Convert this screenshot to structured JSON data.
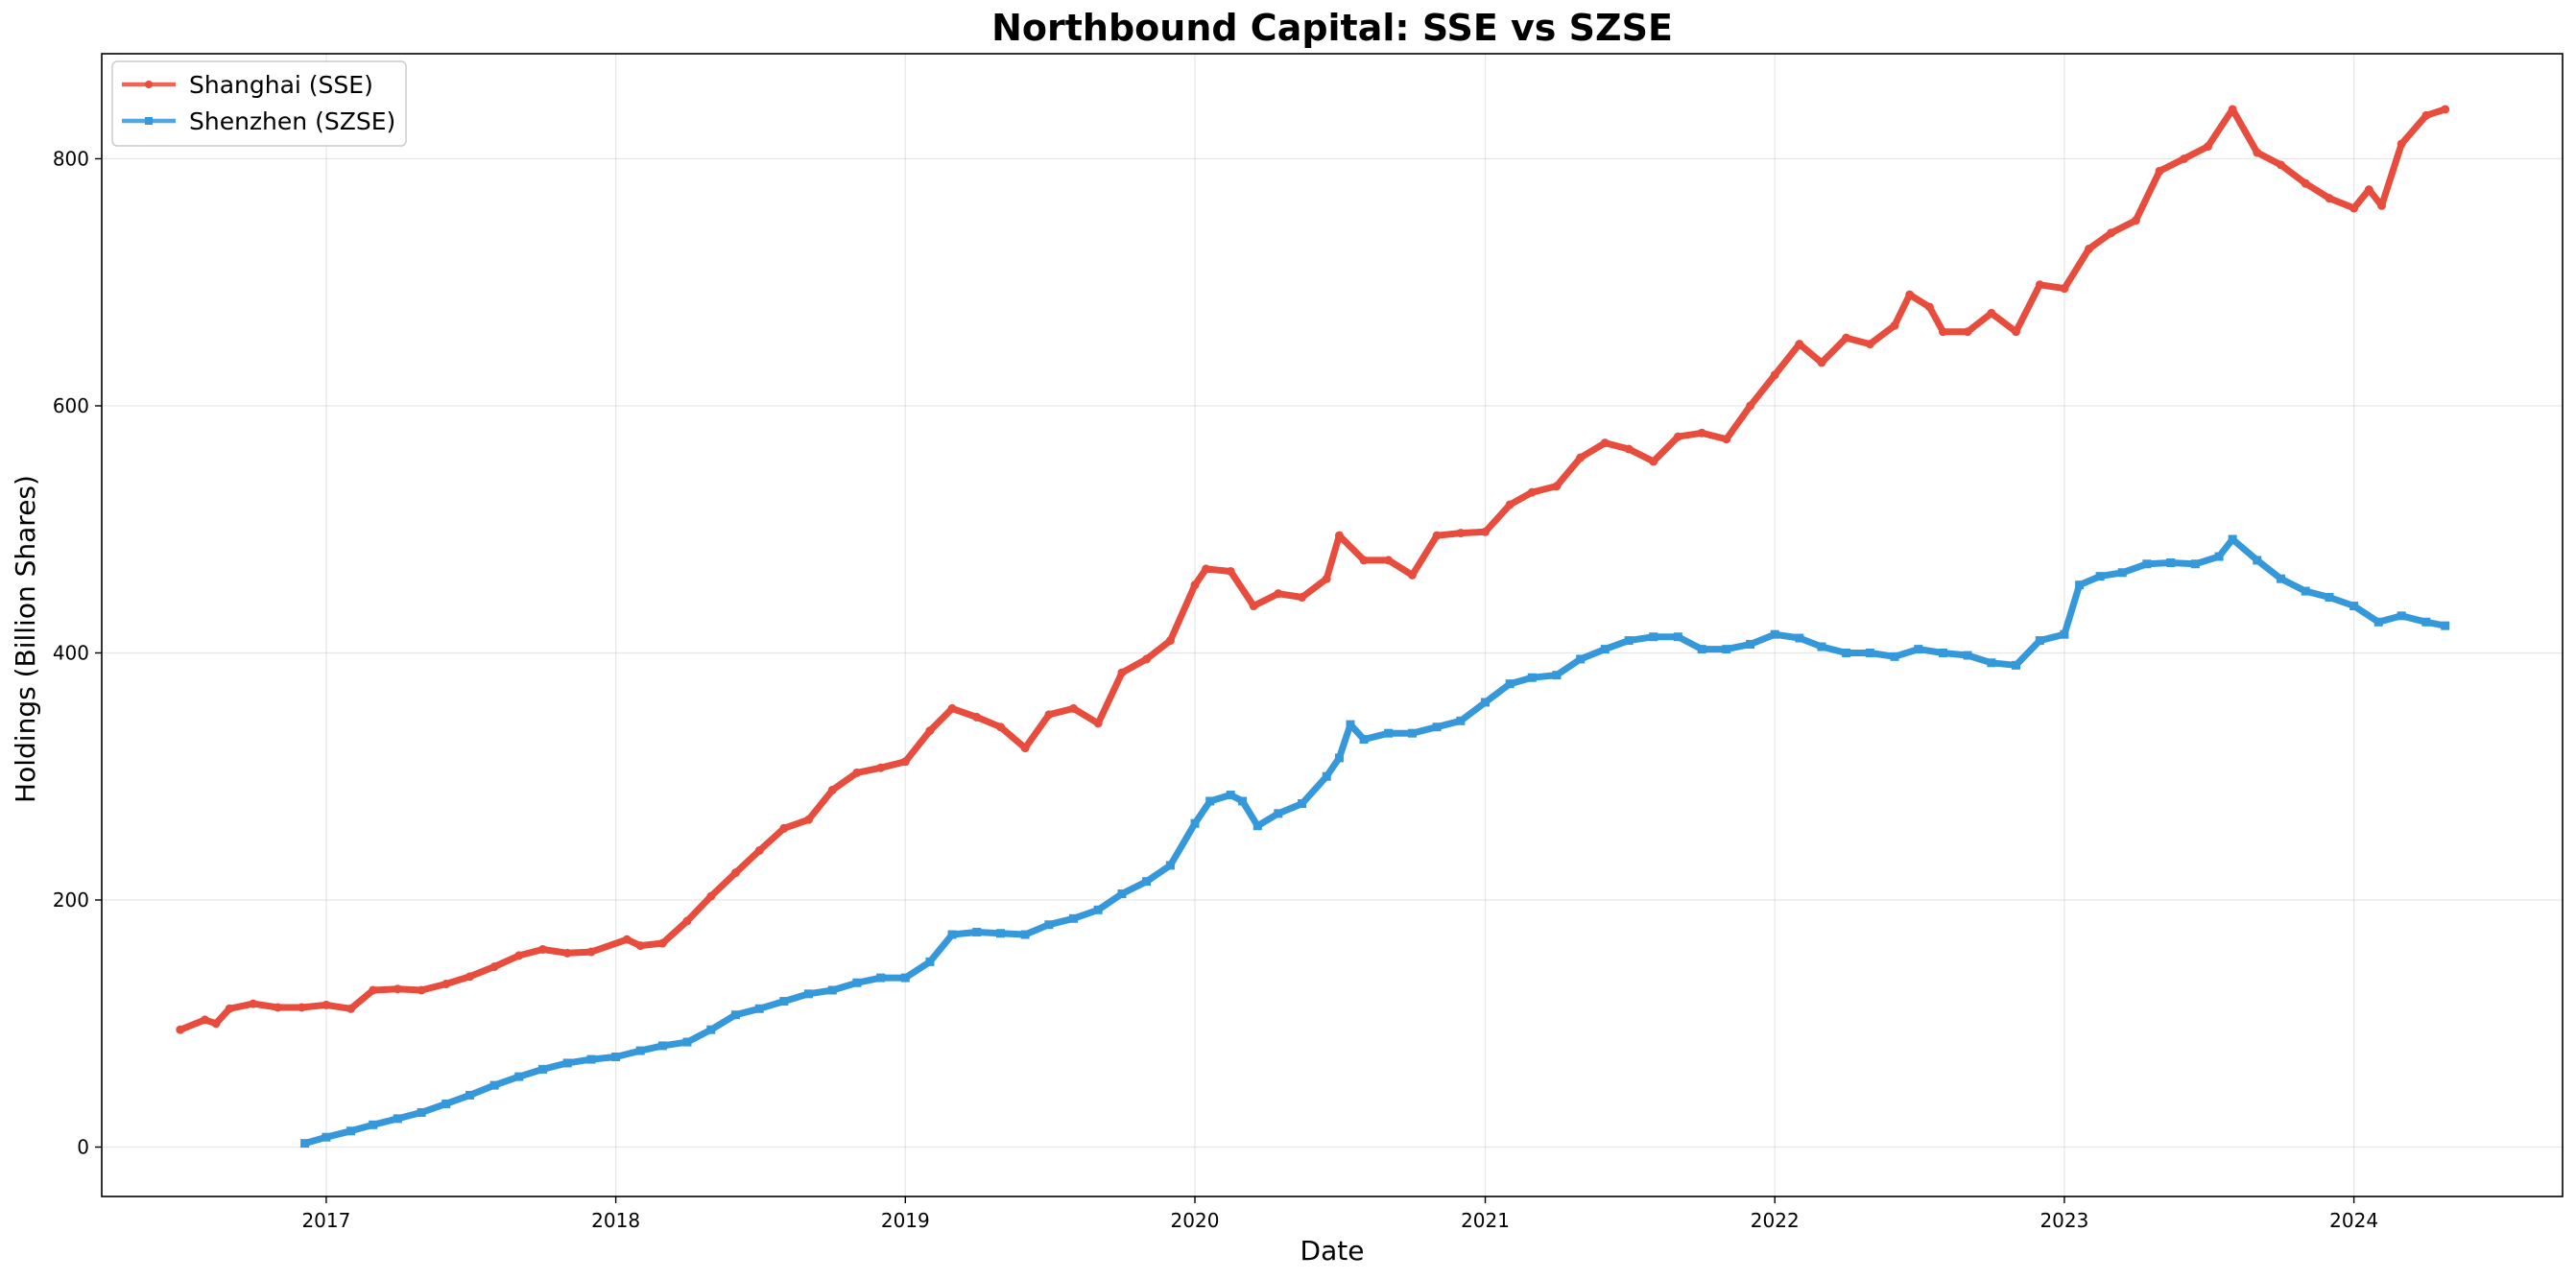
{
  "chart_data": {
    "type": "line",
    "title": "Northbound Capital: SSE vs SZSE",
    "xlabel": "Date",
    "ylabel": "Holdings (Billion Shares)",
    "x_type": "date",
    "xlim": [
      "2016-03-24",
      "2024-09-20"
    ],
    "ylim": [
      -40,
      885
    ],
    "x_ticks": [
      {
        "date": "2017-01-01",
        "label": "2017"
      },
      {
        "date": "2018-01-01",
        "label": "2018"
      },
      {
        "date": "2019-01-01",
        "label": "2019"
      },
      {
        "date": "2020-01-01",
        "label": "2020"
      },
      {
        "date": "2021-01-01",
        "label": "2021"
      },
      {
        "date": "2022-01-01",
        "label": "2022"
      },
      {
        "date": "2023-01-01",
        "label": "2023"
      },
      {
        "date": "2024-01-01",
        "label": "2024"
      }
    ],
    "y_ticks": [
      {
        "value": 0,
        "label": "0"
      },
      {
        "value": 200,
        "label": "200"
      },
      {
        "value": 400,
        "label": "400"
      },
      {
        "value": 600,
        "label": "600"
      },
      {
        "value": 800,
        "label": "800"
      }
    ],
    "grid": true,
    "legend_position": "top-left",
    "series": [
      {
        "name": "Shanghai (SSE)",
        "color": "#e74c3c",
        "marker": "circle",
        "points": [
          [
            "2016-07-01",
            95
          ],
          [
            "2016-08-01",
            103
          ],
          [
            "2016-08-15",
            100
          ],
          [
            "2016-09-01",
            112
          ],
          [
            "2016-10-01",
            116
          ],
          [
            "2016-11-01",
            113
          ],
          [
            "2016-12-01",
            113
          ],
          [
            "2017-01-01",
            115
          ],
          [
            "2017-02-01",
            112
          ],
          [
            "2017-03-01",
            127
          ],
          [
            "2017-04-01",
            128
          ],
          [
            "2017-05-01",
            127
          ],
          [
            "2017-06-01",
            132
          ],
          [
            "2017-07-01",
            138
          ],
          [
            "2017-08-01",
            146
          ],
          [
            "2017-09-01",
            155
          ],
          [
            "2017-10-01",
            160
          ],
          [
            "2017-11-01",
            157
          ],
          [
            "2017-12-01",
            158
          ],
          [
            "2018-01-15",
            168
          ],
          [
            "2018-02-01",
            163
          ],
          [
            "2018-03-01",
            165
          ],
          [
            "2018-04-01",
            183
          ],
          [
            "2018-05-01",
            203
          ],
          [
            "2018-06-01",
            222
          ],
          [
            "2018-07-01",
            240
          ],
          [
            "2018-08-01",
            258
          ],
          [
            "2018-09-01",
            265
          ],
          [
            "2018-10-01",
            289
          ],
          [
            "2018-11-01",
            303
          ],
          [
            "2018-12-01",
            307
          ],
          [
            "2019-01-01",
            312
          ],
          [
            "2019-02-01",
            337
          ],
          [
            "2019-03-01",
            355
          ],
          [
            "2019-04-01",
            348
          ],
          [
            "2019-05-01",
            340
          ],
          [
            "2019-06-01",
            323
          ],
          [
            "2019-07-01",
            350
          ],
          [
            "2019-08-01",
            355
          ],
          [
            "2019-09-01",
            343
          ],
          [
            "2019-10-01",
            384
          ],
          [
            "2019-11-01",
            395
          ],
          [
            "2019-12-01",
            410
          ],
          [
            "2020-01-01",
            455
          ],
          [
            "2020-01-15",
            468
          ],
          [
            "2020-02-15",
            466
          ],
          [
            "2020-03-15",
            438
          ],
          [
            "2020-04-15",
            448
          ],
          [
            "2020-05-15",
            445
          ],
          [
            "2020-06-15",
            460
          ],
          [
            "2020-07-01",
            495
          ],
          [
            "2020-08-01",
            475
          ],
          [
            "2020-09-01",
            475
          ],
          [
            "2020-10-01",
            463
          ],
          [
            "2020-11-01",
            495
          ],
          [
            "2020-12-01",
            497
          ],
          [
            "2021-01-01",
            498
          ],
          [
            "2021-02-01",
            520
          ],
          [
            "2021-03-01",
            530
          ],
          [
            "2021-04-01",
            535
          ],
          [
            "2021-05-01",
            558
          ],
          [
            "2021-06-01",
            570
          ],
          [
            "2021-07-01",
            565
          ],
          [
            "2021-08-01",
            555
          ],
          [
            "2021-09-01",
            575
          ],
          [
            "2021-10-01",
            578
          ],
          [
            "2021-11-01",
            573
          ],
          [
            "2021-12-01",
            600
          ],
          [
            "2022-01-01",
            625
          ],
          [
            "2022-02-01",
            650
          ],
          [
            "2022-03-01",
            635
          ],
          [
            "2022-04-01",
            655
          ],
          [
            "2022-05-01",
            650
          ],
          [
            "2022-06-01",
            665
          ],
          [
            "2022-06-20",
            690
          ],
          [
            "2022-07-15",
            680
          ],
          [
            "2022-08-01",
            660
          ],
          [
            "2022-09-01",
            660
          ],
          [
            "2022-10-01",
            675
          ],
          [
            "2022-11-01",
            660
          ],
          [
            "2022-12-01",
            698
          ],
          [
            "2023-01-01",
            695
          ],
          [
            "2023-02-01",
            727
          ],
          [
            "2023-03-01",
            740
          ],
          [
            "2023-04-01",
            750
          ],
          [
            "2023-05-01",
            790
          ],
          [
            "2023-06-01",
            800
          ],
          [
            "2023-07-01",
            810
          ],
          [
            "2023-08-01",
            840
          ],
          [
            "2023-09-01",
            805
          ],
          [
            "2023-10-01",
            795
          ],
          [
            "2023-11-01",
            780
          ],
          [
            "2023-12-01",
            768
          ],
          [
            "2024-01-01",
            760
          ],
          [
            "2024-01-20",
            775
          ],
          [
            "2024-02-05",
            762
          ],
          [
            "2024-03-01",
            812
          ],
          [
            "2024-04-01",
            835
          ],
          [
            "2024-04-25",
            840
          ]
        ]
      },
      {
        "name": "Shenzhen (SZSE)",
        "color": "#3498db",
        "marker": "square",
        "points": [
          [
            "2016-12-05",
            3
          ],
          [
            "2017-01-01",
            8
          ],
          [
            "2017-02-01",
            13
          ],
          [
            "2017-03-01",
            18
          ],
          [
            "2017-04-01",
            23
          ],
          [
            "2017-05-01",
            28
          ],
          [
            "2017-06-01",
            35
          ],
          [
            "2017-07-01",
            42
          ],
          [
            "2017-08-01",
            50
          ],
          [
            "2017-09-01",
            57
          ],
          [
            "2017-10-01",
            63
          ],
          [
            "2017-11-01",
            68
          ],
          [
            "2017-12-01",
            71
          ],
          [
            "2018-01-01",
            73
          ],
          [
            "2018-02-01",
            78
          ],
          [
            "2018-03-01",
            82
          ],
          [
            "2018-04-01",
            85
          ],
          [
            "2018-05-01",
            95
          ],
          [
            "2018-06-01",
            107
          ],
          [
            "2018-07-01",
            112
          ],
          [
            "2018-08-01",
            118
          ],
          [
            "2018-09-01",
            124
          ],
          [
            "2018-10-01",
            127
          ],
          [
            "2018-11-01",
            133
          ],
          [
            "2018-12-01",
            137
          ],
          [
            "2019-01-01",
            137
          ],
          [
            "2019-02-01",
            150
          ],
          [
            "2019-03-01",
            172
          ],
          [
            "2019-04-01",
            174
          ],
          [
            "2019-05-01",
            173
          ],
          [
            "2019-06-01",
            172
          ],
          [
            "2019-07-01",
            180
          ],
          [
            "2019-08-01",
            185
          ],
          [
            "2019-09-01",
            192
          ],
          [
            "2019-10-01",
            205
          ],
          [
            "2019-11-01",
            215
          ],
          [
            "2019-12-01",
            228
          ],
          [
            "2020-01-01",
            262
          ],
          [
            "2020-01-20",
            280
          ],
          [
            "2020-02-15",
            285
          ],
          [
            "2020-03-01",
            280
          ],
          [
            "2020-03-20",
            260
          ],
          [
            "2020-04-15",
            270
          ],
          [
            "2020-05-15",
            278
          ],
          [
            "2020-06-15",
            300
          ],
          [
            "2020-07-01",
            315
          ],
          [
            "2020-07-15",
            342
          ],
          [
            "2020-08-01",
            330
          ],
          [
            "2020-09-01",
            335
          ],
          [
            "2020-10-01",
            335
          ],
          [
            "2020-11-01",
            340
          ],
          [
            "2020-12-01",
            345
          ],
          [
            "2021-01-01",
            360
          ],
          [
            "2021-02-01",
            375
          ],
          [
            "2021-03-01",
            380
          ],
          [
            "2021-04-01",
            382
          ],
          [
            "2021-05-01",
            395
          ],
          [
            "2021-06-01",
            403
          ],
          [
            "2021-07-01",
            410
          ],
          [
            "2021-08-01",
            413
          ],
          [
            "2021-09-01",
            413
          ],
          [
            "2021-10-01",
            403
          ],
          [
            "2021-11-01",
            403
          ],
          [
            "2021-12-01",
            407
          ],
          [
            "2022-01-01",
            415
          ],
          [
            "2022-02-01",
            412
          ],
          [
            "2022-03-01",
            405
          ],
          [
            "2022-04-01",
            400
          ],
          [
            "2022-05-01",
            400
          ],
          [
            "2022-06-01",
            397
          ],
          [
            "2022-07-01",
            403
          ],
          [
            "2022-08-01",
            400
          ],
          [
            "2022-09-01",
            398
          ],
          [
            "2022-10-01",
            392
          ],
          [
            "2022-11-01",
            390
          ],
          [
            "2022-12-01",
            410
          ],
          [
            "2023-01-01",
            415
          ],
          [
            "2023-01-20",
            455
          ],
          [
            "2023-02-15",
            462
          ],
          [
            "2023-03-15",
            465
          ],
          [
            "2023-04-15",
            472
          ],
          [
            "2023-05-15",
            473
          ],
          [
            "2023-06-15",
            472
          ],
          [
            "2023-07-15",
            478
          ],
          [
            "2023-08-01",
            492
          ],
          [
            "2023-09-01",
            475
          ],
          [
            "2023-10-01",
            460
          ],
          [
            "2023-11-01",
            450
          ],
          [
            "2023-12-01",
            445
          ],
          [
            "2024-01-01",
            438
          ],
          [
            "2024-02-01",
            425
          ],
          [
            "2024-03-01",
            430
          ],
          [
            "2024-04-01",
            425
          ],
          [
            "2024-04-25",
            422
          ]
        ]
      }
    ]
  }
}
